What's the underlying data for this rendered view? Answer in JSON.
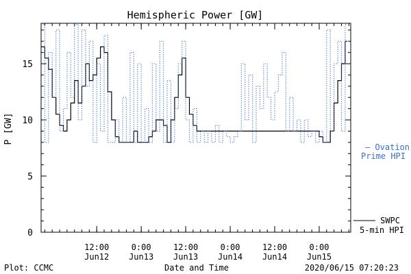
{
  "chart_data": {
    "type": "line",
    "title": "Hemispheric Power [GW]",
    "xlabel": "Date and Time",
    "ylabel": "P [GW]",
    "ylim": [
      0,
      18.6
    ],
    "yticks": [
      0,
      5,
      10,
      15
    ],
    "xlim": [
      "2020-06-11T21:00",
      "2020-06-15T08:30"
    ],
    "xticks": [
      {
        "t": "2020-06-12T12:00",
        "time": "12:00",
        "date": "Jun12"
      },
      {
        "t": "2020-06-13T00:00",
        "time": "0:00",
        "date": "Jun13"
      },
      {
        "t": "2020-06-13T12:00",
        "time": "12:00",
        "date": "Jun13"
      },
      {
        "t": "2020-06-14T00:00",
        "time": "0:00",
        "date": "Jun14"
      },
      {
        "t": "2020-06-14T12:00",
        "time": "12:00",
        "date": "Jun14"
      },
      {
        "t": "2020-06-15T00:00",
        "time": "0:00",
        "date": "Jun15"
      }
    ],
    "grid": false,
    "legend_position": "right",
    "series": [
      {
        "name": "SWPC 5-min HPI",
        "label_lines": [
          "SWPC",
          "5-min HPI"
        ],
        "color": "#000000",
        "style": "solid",
        "x": [
          "2020-06-11T21:00",
          "2020-06-11T22:00",
          "2020-06-11T23:00",
          "2020-06-12T00:00",
          "2020-06-12T01:00",
          "2020-06-12T02:00",
          "2020-06-12T03:00",
          "2020-06-12T04:00",
          "2020-06-12T05:00",
          "2020-06-12T06:00",
          "2020-06-12T07:00",
          "2020-06-12T08:00",
          "2020-06-12T09:00",
          "2020-06-12T10:00",
          "2020-06-12T11:00",
          "2020-06-12T12:00",
          "2020-06-12T13:00",
          "2020-06-12T14:00",
          "2020-06-12T15:00",
          "2020-06-12T16:00",
          "2020-06-12T17:00",
          "2020-06-12T18:00",
          "2020-06-12T19:00",
          "2020-06-12T20:00",
          "2020-06-12T21:00",
          "2020-06-12T22:00",
          "2020-06-12T23:00",
          "2020-06-13T00:00",
          "2020-06-13T01:00",
          "2020-06-13T02:00",
          "2020-06-13T03:00",
          "2020-06-13T04:00",
          "2020-06-13T05:00",
          "2020-06-13T06:00",
          "2020-06-13T07:00",
          "2020-06-13T08:00",
          "2020-06-13T09:00",
          "2020-06-13T10:00",
          "2020-06-13T11:00",
          "2020-06-13T12:00",
          "2020-06-13T13:00",
          "2020-06-13T14:00",
          "2020-06-13T15:00",
          "2020-06-13T16:00",
          "2020-06-13T17:00",
          "2020-06-13T18:00",
          "2020-06-13T19:00",
          "2020-06-13T20:00",
          "2020-06-13T21:00",
          "2020-06-13T22:00",
          "2020-06-14T00:00",
          "2020-06-14T06:00",
          "2020-06-14T12:00",
          "2020-06-14T18:00",
          "2020-06-14T22:00",
          "2020-06-15T00:00",
          "2020-06-15T01:00",
          "2020-06-15T02:00",
          "2020-06-15T03:00",
          "2020-06-15T04:00",
          "2020-06-15T05:00",
          "2020-06-15T06:00",
          "2020-06-15T07:00"
        ],
        "y": [
          16.5,
          15.5,
          14.5,
          12.0,
          10.5,
          9.5,
          9.0,
          10.0,
          11.5,
          13.5,
          11.5,
          13.0,
          15.0,
          13.5,
          14.0,
          15.5,
          16.5,
          16.0,
          12.5,
          10.0,
          8.5,
          8.0,
          8.0,
          8.0,
          8.0,
          9.0,
          8.0,
          8.0,
          8.0,
          8.5,
          9.0,
          10.0,
          10.0,
          9.5,
          8.0,
          10.0,
          12.0,
          14.0,
          15.5,
          12.0,
          10.5,
          9.5,
          9.0,
          9.0,
          9.0,
          9.0,
          9.0,
          9.0,
          9.0,
          9.0,
          9.0,
          9.0,
          9.0,
          9.0,
          9.0,
          8.5,
          8.0,
          8.0,
          9.0,
          11.5,
          13.5,
          15.0,
          17.0
        ]
      },
      {
        "name": "Ovation Prime HPI",
        "label_lines": [
          "– Ovation",
          "Prime HPI"
        ],
        "color": "#3a6fcc",
        "style": "dotted",
        "x": [
          "2020-06-11T21:00",
          "2020-06-11T22:00",
          "2020-06-11T23:00",
          "2020-06-12T00:00",
          "2020-06-12T01:00",
          "2020-06-12T02:00",
          "2020-06-12T03:00",
          "2020-06-12T04:00",
          "2020-06-12T05:00",
          "2020-06-12T06:00",
          "2020-06-12T07:00",
          "2020-06-12T08:00",
          "2020-06-12T09:00",
          "2020-06-12T10:00",
          "2020-06-12T11:00",
          "2020-06-12T12:00",
          "2020-06-12T13:00",
          "2020-06-12T14:00",
          "2020-06-12T15:00",
          "2020-06-12T16:00",
          "2020-06-12T17:00",
          "2020-06-12T18:00",
          "2020-06-12T19:00",
          "2020-06-12T20:00",
          "2020-06-12T21:00",
          "2020-06-12T22:00",
          "2020-06-12T23:00",
          "2020-06-13T00:00",
          "2020-06-13T01:00",
          "2020-06-13T02:00",
          "2020-06-13T03:00",
          "2020-06-13T04:00",
          "2020-06-13T05:00",
          "2020-06-13T06:00",
          "2020-06-13T07:00",
          "2020-06-13T08:00",
          "2020-06-13T09:00",
          "2020-06-13T10:00",
          "2020-06-13T11:00",
          "2020-06-13T12:00",
          "2020-06-13T13:00",
          "2020-06-13T14:00",
          "2020-06-13T15:00",
          "2020-06-13T16:00",
          "2020-06-13T17:00",
          "2020-06-13T18:00",
          "2020-06-13T19:00",
          "2020-06-13T20:00",
          "2020-06-13T21:00",
          "2020-06-13T22:00",
          "2020-06-13T23:00",
          "2020-06-14T00:00",
          "2020-06-14T01:00",
          "2020-06-14T02:00",
          "2020-06-14T03:00",
          "2020-06-14T04:00",
          "2020-06-14T05:00",
          "2020-06-14T06:00",
          "2020-06-14T07:00",
          "2020-06-14T08:00",
          "2020-06-14T09:00",
          "2020-06-14T10:00",
          "2020-06-14T11:00",
          "2020-06-14T12:00",
          "2020-06-14T13:00",
          "2020-06-14T14:00",
          "2020-06-14T15:00",
          "2020-06-14T16:00",
          "2020-06-14T17:00",
          "2020-06-14T18:00",
          "2020-06-14T19:00",
          "2020-06-14T20:00",
          "2020-06-14T21:00",
          "2020-06-14T22:00",
          "2020-06-14T23:00",
          "2020-06-15T00:00",
          "2020-06-15T01:00",
          "2020-06-15T02:00",
          "2020-06-15T03:00",
          "2020-06-15T04:00",
          "2020-06-15T05:00",
          "2020-06-15T06:00",
          "2020-06-15T07:00"
        ],
        "y": [
          18.5,
          8.0,
          16.0,
          12.0,
          18.0,
          9.0,
          11.0,
          16.0,
          12.0,
          18.5,
          10.0,
          18.0,
          13.0,
          17.0,
          8.0,
          15.0,
          9.0,
          17.5,
          8.0,
          8.0,
          10.0,
          8.0,
          12.0,
          8.0,
          16.0,
          8.0,
          15.0,
          8.0,
          11.0,
          8.0,
          15.0,
          9.0,
          17.0,
          8.0,
          13.5,
          8.0,
          11.0,
          15.0,
          17.0,
          10.0,
          8.0,
          11.0,
          8.0,
          9.0,
          8.0,
          9.0,
          8.0,
          9.5,
          8.0,
          9.0,
          8.5,
          8.0,
          8.5,
          9.0,
          15.0,
          10.0,
          14.0,
          8.0,
          13.0,
          11.0,
          15.0,
          12.0,
          10.0,
          12.5,
          14.0,
          16.0,
          9.0,
          12.0,
          9.0,
          10.0,
          8.0,
          10.0,
          8.5,
          9.0,
          8.0,
          9.0,
          8.0,
          18.0,
          9.0,
          15.0,
          17.0,
          9.0,
          18.5
        ]
      }
    ]
  },
  "footer": {
    "plot_credit": "Plot: CCMC",
    "xlabel": "Date and Time",
    "timestamp": "2020/06/15 07:20:23"
  }
}
